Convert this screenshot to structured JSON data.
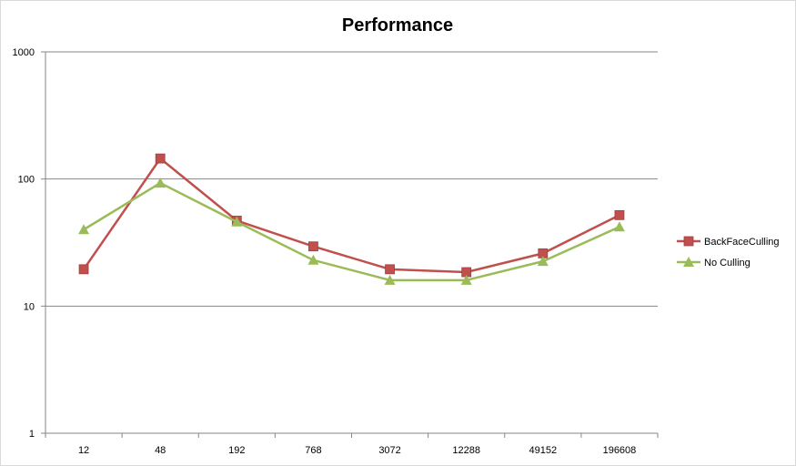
{
  "chart_data": {
    "type": "line",
    "title": "Performance",
    "xlabel": "",
    "ylabel": "",
    "y_scale": "log",
    "ylim": [
      1,
      1000
    ],
    "y_ticks": [
      "1",
      "10",
      "100",
      "1000"
    ],
    "y_tick_values": [
      1,
      10,
      100,
      1000
    ],
    "categories": [
      "12",
      "48",
      "192",
      "768",
      "3072",
      "12288",
      "49152",
      "196608"
    ],
    "grid": "horizontal",
    "legend_position": "right",
    "series": [
      {
        "name": "BackFaceCulling",
        "color": "#C0504D",
        "marker": "square",
        "values": [
          19.5,
          145,
          47,
          29.5,
          19.5,
          18.5,
          26,
          52
        ]
      },
      {
        "name": "No Culling",
        "color": "#9BBB59",
        "marker": "triangle",
        "values": [
          40,
          93,
          46,
          23,
          16,
          16,
          22.5,
          42
        ]
      }
    ]
  }
}
